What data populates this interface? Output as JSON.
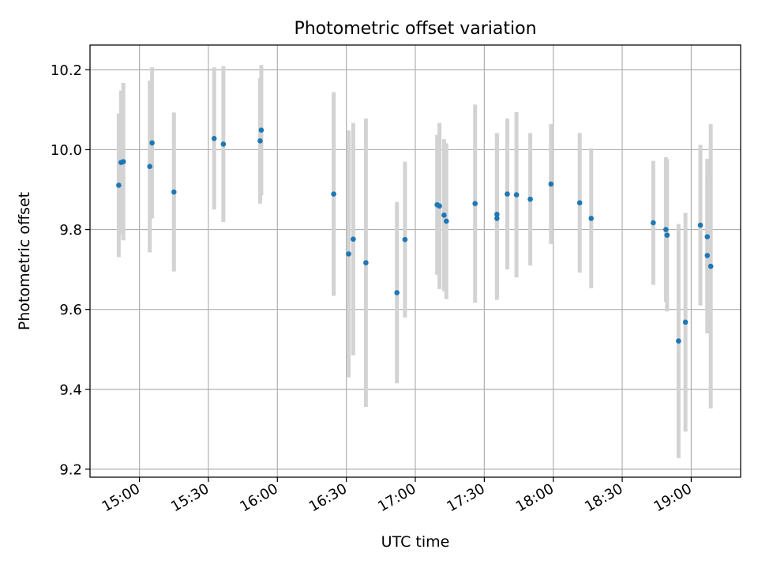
{
  "chart_data": {
    "type": "scatter",
    "title": "Photometric offset variation",
    "xlabel": "UTC time",
    "ylabel": "Photometric offset",
    "x_ticks": [
      "15:00",
      "15:30",
      "16:00",
      "16:30",
      "17:00",
      "17:30",
      "18:00",
      "18:30",
      "19:00"
    ],
    "x_tick_values_minutes": [
      900,
      930,
      960,
      990,
      1020,
      1050,
      1080,
      1110,
      1140
    ],
    "y_ticks": [
      "9.2",
      "9.4",
      "9.6",
      "9.8",
      "10.0",
      "10.2"
    ],
    "xlim": [
      "14:38:30",
      "19:21:30"
    ],
    "ylim": [
      9.18,
      10.262
    ],
    "grid": true,
    "colors": {
      "point": "#1f77b4",
      "error_bar": "#d3d3d3",
      "grid": "#b0b0b0",
      "axes": "#000000"
    },
    "points": [
      {
        "time": "14:51:00",
        "y": 9.911,
        "err": 0.18
      },
      {
        "time": "14:52:00",
        "y": 9.968,
        "err": 0.18
      },
      {
        "time": "14:53:00",
        "y": 9.97,
        "err": 0.197
      },
      {
        "time": "15:04:30",
        "y": 9.958,
        "err": 0.215
      },
      {
        "time": "15:05:30",
        "y": 10.017,
        "err": 0.189
      },
      {
        "time": "15:15:00",
        "y": 9.894,
        "err": 0.199
      },
      {
        "time": "15:32:30",
        "y": 10.028,
        "err": 0.178
      },
      {
        "time": "15:36:30",
        "y": 10.014,
        "err": 0.195
      },
      {
        "time": "15:52:30",
        "y": 10.022,
        "err": 0.157
      },
      {
        "time": "15:53:00",
        "y": 10.049,
        "err": 0.163
      },
      {
        "time": "16:24:30",
        "y": 9.889,
        "err": 0.255
      },
      {
        "time": "16:31:00",
        "y": 9.739,
        "err": 0.309
      },
      {
        "time": "16:33:00",
        "y": 9.776,
        "err": 0.291
      },
      {
        "time": "16:38:30",
        "y": 9.717,
        "err": 0.361
      },
      {
        "time": "16:52:00",
        "y": 9.642,
        "err": 0.227
      },
      {
        "time": "16:55:30",
        "y": 9.775,
        "err": 0.195
      },
      {
        "time": "17:09:30",
        "y": 9.862,
        "err": 0.175
      },
      {
        "time": "17:10:30",
        "y": 9.859,
        "err": 0.208
      },
      {
        "time": "17:12:30",
        "y": 9.836,
        "err": 0.19
      },
      {
        "time": "17:13:30",
        "y": 9.821,
        "err": 0.195
      },
      {
        "time": "17:26:00",
        "y": 9.865,
        "err": 0.248
      },
      {
        "time": "17:35:30",
        "y": 9.838,
        "err": 0.204
      },
      {
        "time": "17:35:30",
        "y": 9.828,
        "err": 0.204
      },
      {
        "time": "17:40:00",
        "y": 9.889,
        "err": 0.189
      },
      {
        "time": "17:44:00",
        "y": 9.887,
        "err": 0.207
      },
      {
        "time": "17:50:00",
        "y": 9.876,
        "err": 0.166
      },
      {
        "time": "17:59:00",
        "y": 9.914,
        "err": 0.15
      },
      {
        "time": "18:11:30",
        "y": 9.867,
        "err": 0.175
      },
      {
        "time": "18:16:30",
        "y": 9.828,
        "err": 0.175
      },
      {
        "time": "18:43:30",
        "y": 9.817,
        "err": 0.155
      },
      {
        "time": "18:49:00",
        "y": 9.8,
        "err": 0.181
      },
      {
        "time": "18:49:30",
        "y": 9.786,
        "err": 0.191
      },
      {
        "time": "18:54:30",
        "y": 9.521,
        "err": 0.293
      },
      {
        "time": "18:57:30",
        "y": 9.568,
        "err": 0.274
      },
      {
        "time": "19:04:00",
        "y": 9.811,
        "err": 0.201
      },
      {
        "time": "19:07:00",
        "y": 9.782,
        "err": 0.195
      },
      {
        "time": "19:07:00",
        "y": 9.735,
        "err": 0.195
      },
      {
        "time": "19:08:30",
        "y": 9.708,
        "err": 0.356
      }
    ]
  }
}
